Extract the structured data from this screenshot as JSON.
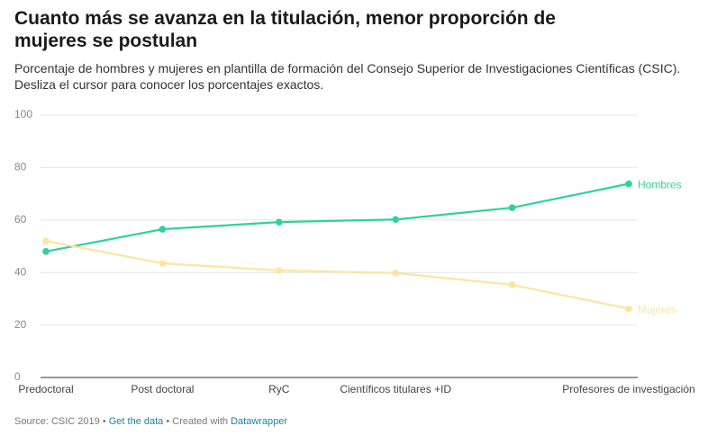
{
  "chart_data": {
    "type": "line",
    "title": "Cuanto más se avanza en la titulación, menor proporción de mujeres se postulan",
    "subtitle": [
      "Porcentaje de hombres y mujeres en plantilla de formación del Consejo Superior de Investigaciones Científicas (CSIC).",
      "Desliza el cursor para conocer los porcentajes exactos."
    ],
    "categories": [
      "Predoctoral",
      "Post doctoral",
      "RyC",
      "Científicos titulares +ID",
      null,
      "Profesores de investigación"
    ],
    "series": [
      {
        "name": "Hombres",
        "color": "#2fd19f",
        "values": [
          48,
          56.5,
          59.2,
          60.2,
          64.7,
          73.8
        ]
      },
      {
        "name": "Mujeres",
        "color": "#fde4a0",
        "values": [
          52,
          43.5,
          40.8,
          39.8,
          35.3,
          26.2
        ]
      }
    ],
    "ylim": [
      0,
      100
    ],
    "yticks": [
      0,
      20,
      40,
      60,
      80,
      100
    ],
    "grid": true,
    "footer": [
      "Source: CSIC 2019",
      " • ",
      "Get the data",
      " • Created with ",
      "Datawrapper"
    ]
  }
}
